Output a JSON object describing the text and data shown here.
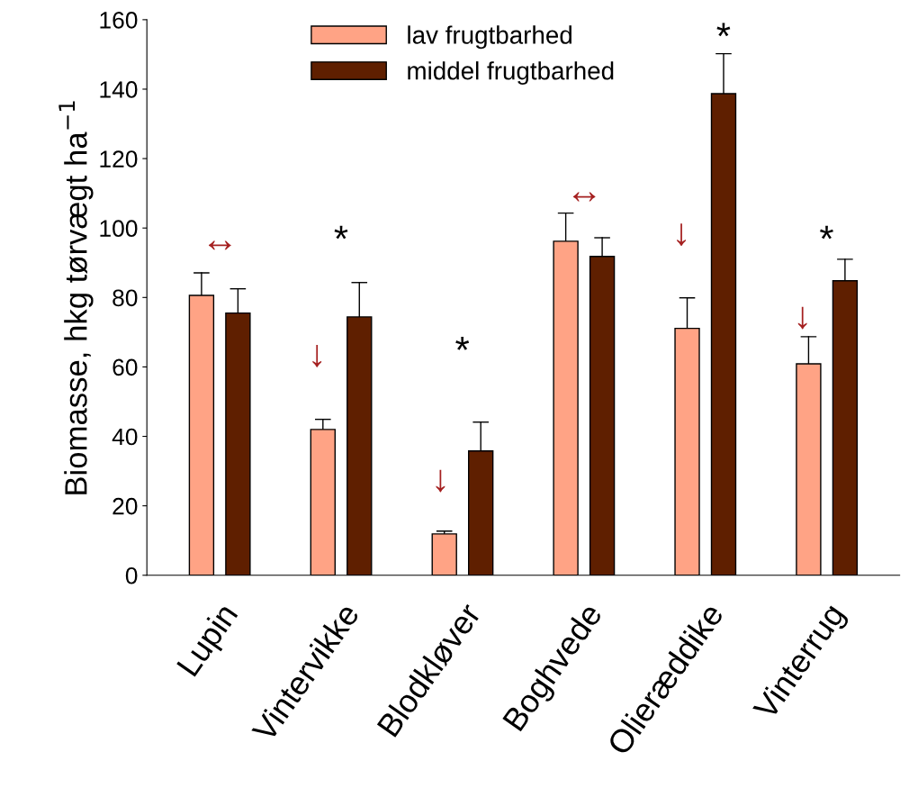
{
  "chart_data": {
    "type": "bar",
    "ylabel": "Biomasse, hkg tørvægt ha$^{−1}$",
    "categories": [
      "Lupin",
      "Vintervikke",
      "Blodkløver",
      "Boghvede",
      "Olieræddike",
      "Vinterrug"
    ],
    "series": [
      {
        "name": "lav frugtbarhed",
        "color": "#ffa385",
        "values": [
          80.6,
          42.0,
          11.9,
          96.2,
          71.1,
          60.9
        ],
        "errors": [
          [
            80.6,
            87.1
          ],
          [
            42.0,
            44.9
          ],
          [
            11.9,
            12.7
          ],
          [
            96.2,
            104.3
          ],
          [
            71.1,
            79.9
          ],
          [
            60.9,
            68.7
          ]
        ]
      },
      {
        "name": "middel frugtbarhed",
        "color": "#5f1f00",
        "values": [
          75.5,
          74.4,
          35.8,
          91.8,
          138.7,
          84.8
        ],
        "errors": [
          [
            75.5,
            82.5
          ],
          [
            74.4,
            84.3
          ],
          [
            35.8,
            44.1
          ],
          [
            91.8,
            97.2
          ],
          [
            138.7,
            150.2
          ],
          [
            84.8,
            91.0
          ]
        ]
      }
    ],
    "ylim": [
      0,
      160
    ],
    "yticks": [
      0,
      20,
      40,
      60,
      80,
      100,
      120,
      140,
      160
    ],
    "grid": false,
    "legend": "top",
    "annotations": [
      "↔",
      "↓",
      "*",
      "↓",
      "*",
      "↔",
      "↓",
      "*",
      "↓",
      "*"
    ]
  }
}
